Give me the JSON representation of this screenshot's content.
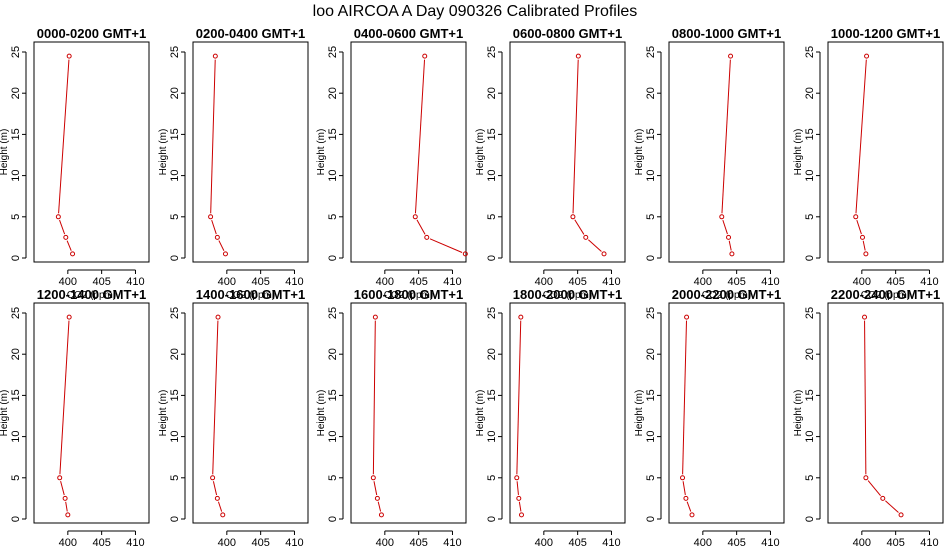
{
  "title": "loo AIRCOA A  Day 090326  Calibrated Profiles",
  "colors": {
    "line": "#cc0000",
    "axis": "#000000",
    "background": "#ffffff"
  },
  "chart_data": {
    "type": "line",
    "xlabel": "CO2 (ppm)",
    "ylabel": "Height (m)",
    "xlim": [
      395,
      412
    ],
    "ylim": [
      0,
      25
    ],
    "xticks": [
      400,
      405,
      410
    ],
    "yticks": [
      0,
      5,
      10,
      15,
      20,
      25
    ],
    "x_tick_labels": [
      "400",
      "405",
      "410"
    ],
    "y_tick_labels": [
      "0",
      "5",
      "10",
      "15",
      "20",
      "25"
    ],
    "grid": false,
    "heights": [
      0.5,
      2.5,
      5,
      24.5
    ],
    "panels": [
      {
        "title": "0000-0200 GMT+1",
        "co2": [
          400.7,
          399.7,
          398.6,
          400.2
        ]
      },
      {
        "title": "0200-0400 GMT+1",
        "co2": [
          399.8,
          398.6,
          397.6,
          398.3
        ]
      },
      {
        "title": "0400-0600 GMT+1",
        "co2": [
          411.9,
          406.2,
          404.5,
          405.9
        ]
      },
      {
        "title": "0600-0800 GMT+1",
        "co2": [
          408.9,
          406.2,
          404.3,
          405.1
        ]
      },
      {
        "title": "0800-1000 GMT+1",
        "co2": [
          404.3,
          403.8,
          402.8,
          404.1
        ]
      },
      {
        "title": "1000-1200 GMT+1",
        "co2": [
          400.6,
          400.1,
          399.1,
          400.7
        ]
      },
      {
        "title": "1200-1400 GMT+1",
        "co2": [
          400.0,
          399.6,
          398.8,
          400.2
        ]
      },
      {
        "title": "1400-1600 GMT+1",
        "co2": [
          399.4,
          398.6,
          397.9,
          398.7
        ]
      },
      {
        "title": "1600-1800 GMT+1",
        "co2": [
          399.5,
          398.9,
          398.3,
          398.6
        ]
      },
      {
        "title": "1800-2000 GMT+1",
        "co2": [
          396.7,
          396.3,
          396.0,
          396.6
        ]
      },
      {
        "title": "2000-2200 GMT+1",
        "co2": [
          398.4,
          397.5,
          397.0,
          397.6
        ]
      },
      {
        "title": "2200-2400 GMT+1",
        "co2": [
          405.8,
          403.1,
          400.6,
          400.4
        ]
      }
    ]
  }
}
